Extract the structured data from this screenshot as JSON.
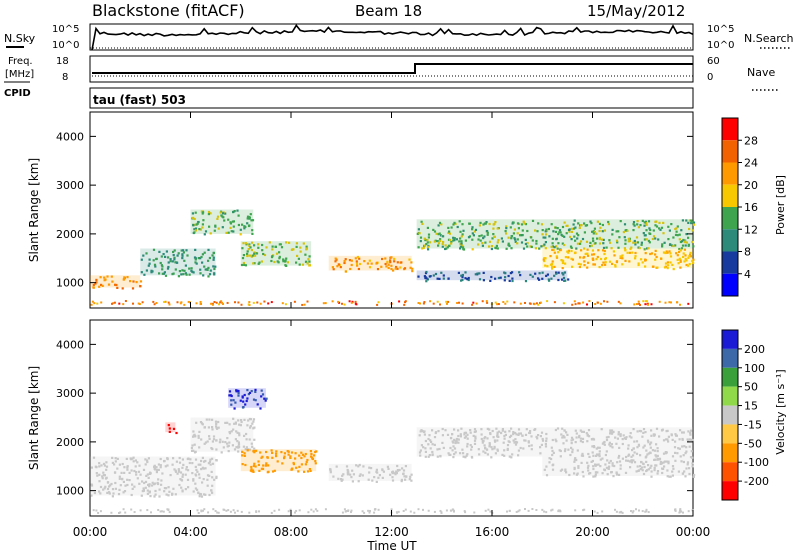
{
  "header": {
    "station": "Blackstone (fitACF)",
    "beam": "Beam 18",
    "date": "15/May/2012"
  },
  "noise_panel": {
    "left_label": "N.Sky",
    "right_label": "N.Search",
    "left_ticks": [
      "10^5",
      "10^0"
    ],
    "right_ticks": [
      "10^5",
      "10^0"
    ]
  },
  "freq_panel": {
    "left_label_1": "Freq.",
    "left_label_2": "[MHz]",
    "cpid_label": "CPID",
    "left_ticks": [
      "18",
      "8"
    ],
    "right_ticks": [
      "60",
      "0"
    ],
    "right_label": "Nave"
  },
  "cpid_text": "tau (fast) 503",
  "power_colorbar": {
    "label": "Power [dB]",
    "ticks": [
      "28",
      "24",
      "20",
      "16",
      "12",
      "8",
      "4"
    ],
    "colors": [
      "#ff0000",
      "#f26200",
      "#ff9900",
      "#f7c800",
      "#3fa44e",
      "#2c8a7b",
      "#173a9e",
      "#0000ff"
    ]
  },
  "velocity_colorbar": {
    "label": "Velocity [m s⁻¹]",
    "ticks": [
      "200",
      "100",
      "50",
      "15",
      "-15",
      "-50",
      "-100",
      "-200"
    ],
    "colors": [
      "#1b1bd6",
      "#3d69a8",
      "#3aa03a",
      "#8fd94a",
      "#c8c8c8",
      "#ffc845",
      "#ff9a00",
      "#ff5200",
      "#ff0000"
    ]
  },
  "chart_data": [
    {
      "type": "heatmap",
      "title": "",
      "ylabel": "Slant Range [km]",
      "xlabel": "",
      "y_ticks": [
        "1000",
        "2000",
        "3000",
        "4000"
      ],
      "y_range": [
        480,
        4500
      ],
      "x_range_hours": [
        0,
        24
      ],
      "value_label": "Power [dB]",
      "bands": [
        {
          "start_h": 0.0,
          "end_h": 2.0,
          "range_km": [
            900,
            1150
          ],
          "value": 24
        },
        {
          "start_h": 2.0,
          "end_h": 5.0,
          "range_km": [
            1150,
            1700
          ],
          "value": 12
        },
        {
          "start_h": 4.0,
          "end_h": 6.5,
          "range_km": [
            2000,
            2500
          ],
          "value": 14
        },
        {
          "start_h": 6.0,
          "end_h": 8.8,
          "range_km": [
            1350,
            1850
          ],
          "value": 16
        },
        {
          "start_h": 9.5,
          "end_h": 12.8,
          "range_km": [
            1250,
            1550
          ],
          "value": 22
        },
        {
          "start_h": 13.0,
          "end_h": 24.0,
          "range_km": [
            1700,
            2300
          ],
          "value": 14
        },
        {
          "start_h": 18.0,
          "end_h": 24.0,
          "range_km": [
            1300,
            1700
          ],
          "value": 20
        },
        {
          "start_h": 13.0,
          "end_h": 19.0,
          "range_km": [
            1050,
            1250
          ],
          "value": 8
        }
      ]
    },
    {
      "type": "heatmap",
      "title": "",
      "ylabel": "Slant Range [km]",
      "xlabel": "Time UT",
      "y_ticks": [
        "1000",
        "2000",
        "3000",
        "4000"
      ],
      "y_range": [
        480,
        4500
      ],
      "x_ticks": [
        "00:00",
        "04:00",
        "08:00",
        "12:00",
        "16:00",
        "20:00",
        "00:00"
      ],
      "x_range_hours": [
        0,
        24
      ],
      "value_label": "Velocity [m s⁻¹]",
      "bands": [
        {
          "start_h": 0.0,
          "end_h": 5.0,
          "range_km": [
            900,
            1700
          ],
          "value": 0
        },
        {
          "start_h": 4.0,
          "end_h": 6.5,
          "range_km": [
            1800,
            2500
          ],
          "value": 0
        },
        {
          "start_h": 6.0,
          "end_h": 9.0,
          "range_km": [
            1400,
            1850
          ],
          "value": -80
        },
        {
          "start_h": 3.0,
          "end_h": 3.4,
          "range_km": [
            2200,
            2400
          ],
          "value": -250
        },
        {
          "start_h": 5.5,
          "end_h": 7.0,
          "range_km": [
            2700,
            3100
          ],
          "value": 200
        },
        {
          "start_h": 9.5,
          "end_h": 12.8,
          "range_km": [
            1200,
            1550
          ],
          "value": 0
        },
        {
          "start_h": 13.0,
          "end_h": 24.0,
          "range_km": [
            1700,
            2300
          ],
          "value": 0
        },
        {
          "start_h": 18.0,
          "end_h": 24.0,
          "range_km": [
            1300,
            1700
          ],
          "value": 0
        }
      ]
    }
  ]
}
